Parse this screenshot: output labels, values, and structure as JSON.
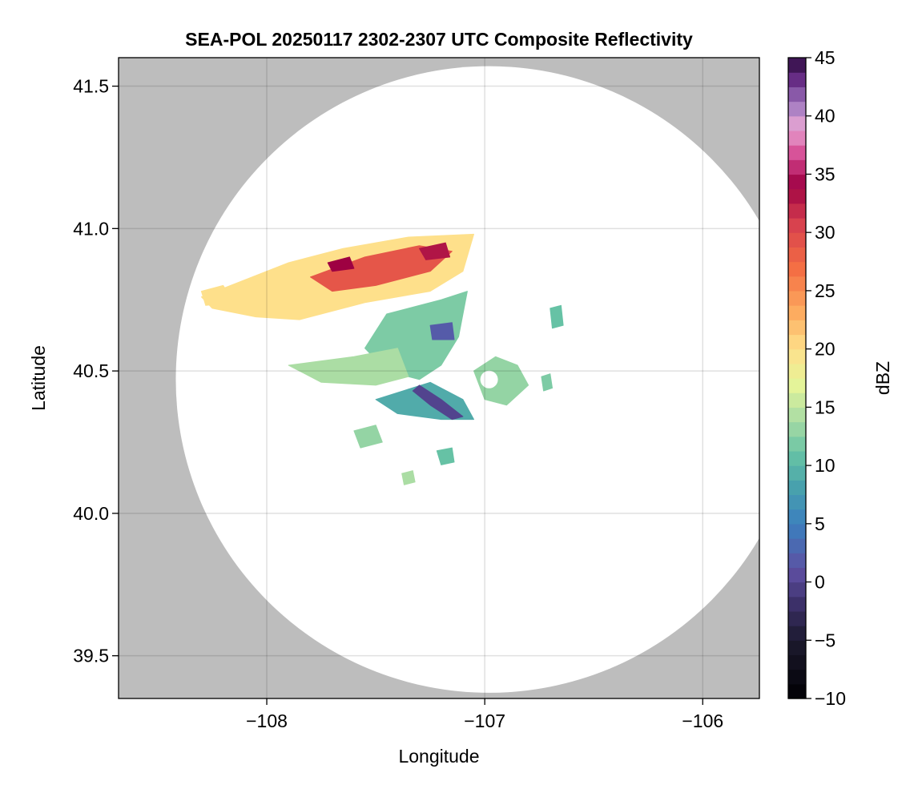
{
  "chart_data": {
    "type": "heatmap",
    "title": "SEA-POL 20250117 2302-2307 UTC Composite Reflectivity",
    "xlabel": "Longitude",
    "ylabel": "Latitude",
    "xlim": [
      -108.68,
      -105.74
    ],
    "ylim": [
      39.35,
      41.6
    ],
    "xticks": [
      {
        "value": -108,
        "label": "−108"
      },
      {
        "value": -107,
        "label": "−107"
      },
      {
        "value": -106,
        "label": "−106"
      }
    ],
    "yticks": [
      {
        "value": 39.5,
        "label": "39.5"
      },
      {
        "value": 40.0,
        "label": "40.0"
      },
      {
        "value": 40.5,
        "label": "40.5"
      },
      {
        "value": 41.0,
        "label": "41.0"
      },
      {
        "value": 41.5,
        "label": "41.5"
      }
    ],
    "grid": true,
    "radar": {
      "center_lon": -106.98,
      "center_lat": 40.47,
      "max_range_deg_lat": 1.1
    },
    "colorbar": {
      "label": "dBZ",
      "min": -10,
      "max": 45,
      "step": 1.25,
      "ticks": [
        -10,
        -5,
        0,
        5,
        10,
        15,
        20,
        25,
        30,
        35,
        40,
        45
      ],
      "tick_labels": [
        "−10",
        "−5",
        "0",
        "5",
        "10",
        "15",
        "20",
        "25",
        "30",
        "35",
        "40",
        "45"
      ],
      "stops": [
        {
          "v": -10,
          "c": "#000004"
        },
        {
          "v": -5,
          "c": "#1c1a2e"
        },
        {
          "v": -2,
          "c": "#3b2f66"
        },
        {
          "v": 1,
          "c": "#5e4fa2"
        },
        {
          "v": 5,
          "c": "#3b7fbf"
        },
        {
          "v": 8,
          "c": "#47a0ad"
        },
        {
          "v": 11,
          "c": "#66c2a5"
        },
        {
          "v": 14,
          "c": "#abdda4"
        },
        {
          "v": 17,
          "c": "#e6f598"
        },
        {
          "v": 20,
          "c": "#fee08b"
        },
        {
          "v": 23,
          "c": "#fdae61"
        },
        {
          "v": 27,
          "c": "#f46d43"
        },
        {
          "v": 31,
          "c": "#d53e4f"
        },
        {
          "v": 34,
          "c": "#9e0142"
        },
        {
          "v": 36.5,
          "c": "#d4448f"
        },
        {
          "v": 39,
          "c": "#e8a6d4"
        },
        {
          "v": 41,
          "c": "#a07ac0"
        },
        {
          "v": 43,
          "c": "#6b2f8a"
        },
        {
          "v": 45,
          "c": "#2d0a3f"
        }
      ]
    },
    "echo_regions": [
      {
        "name": "north-anvil",
        "dbz": 20,
        "points": [
          [
            -108.3,
            40.76
          ],
          [
            -108.1,
            40.82
          ],
          [
            -107.9,
            40.88
          ],
          [
            -107.65,
            40.93
          ],
          [
            -107.35,
            40.97
          ],
          [
            -107.05,
            40.98
          ],
          [
            -107.1,
            40.85
          ],
          [
            -107.25,
            40.78
          ],
          [
            -107.55,
            40.74
          ],
          [
            -107.85,
            40.68
          ],
          [
            -108.05,
            40.69
          ],
          [
            -108.25,
            40.72
          ]
        ]
      },
      {
        "name": "north-core",
        "dbz": 29,
        "points": [
          [
            -107.8,
            40.83
          ],
          [
            -107.55,
            40.9
          ],
          [
            -107.3,
            40.94
          ],
          [
            -107.15,
            40.92
          ],
          [
            -107.25,
            40.85
          ],
          [
            -107.5,
            40.8
          ],
          [
            -107.7,
            40.78
          ]
        ]
      },
      {
        "name": "north-peak-west",
        "dbz": 34,
        "points": [
          [
            -107.72,
            40.88
          ],
          [
            -107.62,
            40.9
          ],
          [
            -107.6,
            40.86
          ],
          [
            -107.7,
            40.85
          ]
        ]
      },
      {
        "name": "north-peak-east",
        "dbz": 33,
        "points": [
          [
            -107.3,
            40.93
          ],
          [
            -107.18,
            40.95
          ],
          [
            -107.16,
            40.9
          ],
          [
            -107.27,
            40.89
          ]
        ]
      },
      {
        "name": "central-band",
        "dbz": 12,
        "points": [
          [
            -107.45,
            40.7
          ],
          [
            -107.2,
            40.75
          ],
          [
            -107.08,
            40.78
          ],
          [
            -107.12,
            40.62
          ],
          [
            -107.2,
            40.52
          ],
          [
            -107.3,
            40.47
          ],
          [
            -107.45,
            40.5
          ],
          [
            -107.55,
            40.58
          ]
        ]
      },
      {
        "name": "central-core",
        "dbz": 2,
        "points": [
          [
            -107.25,
            40.66
          ],
          [
            -107.15,
            40.67
          ],
          [
            -107.14,
            40.61
          ],
          [
            -107.24,
            40.61
          ]
        ]
      },
      {
        "name": "west-arm",
        "dbz": 14,
        "points": [
          [
            -107.9,
            40.52
          ],
          [
            -107.6,
            40.55
          ],
          [
            -107.4,
            40.58
          ],
          [
            -107.35,
            40.48
          ],
          [
            -107.5,
            40.45
          ],
          [
            -107.75,
            40.46
          ]
        ]
      },
      {
        "name": "south-arm",
        "dbz": 9,
        "points": [
          [
            -107.5,
            40.4
          ],
          [
            -107.25,
            40.46
          ],
          [
            -107.1,
            40.4
          ],
          [
            -107.05,
            40.33
          ],
          [
            -107.2,
            40.33
          ],
          [
            -107.4,
            40.35
          ]
        ]
      },
      {
        "name": "southwest-line",
        "dbz": 0,
        "points": [
          [
            -107.3,
            40.45
          ],
          [
            -107.2,
            40.4
          ],
          [
            -107.1,
            40.34
          ],
          [
            -107.15,
            40.33
          ],
          [
            -107.25,
            40.38
          ],
          [
            -107.33,
            40.43
          ]
        ]
      },
      {
        "name": "east-cluster",
        "dbz": 13,
        "points": [
          [
            -107.05,
            40.5
          ],
          [
            -106.95,
            40.55
          ],
          [
            -106.85,
            40.52
          ],
          [
            -106.8,
            40.45
          ],
          [
            -106.9,
            40.38
          ],
          [
            -107.0,
            40.4
          ]
        ]
      },
      {
        "name": "east-small-1",
        "dbz": 12,
        "points": [
          [
            -106.74,
            40.48
          ],
          [
            -106.7,
            40.49
          ],
          [
            -106.69,
            40.44
          ],
          [
            -106.73,
            40.43
          ]
        ]
      },
      {
        "name": "east-small-2",
        "dbz": 11,
        "points": [
          [
            -106.7,
            40.72
          ],
          [
            -106.65,
            40.73
          ],
          [
            -106.64,
            40.66
          ],
          [
            -106.69,
            40.65
          ]
        ]
      },
      {
        "name": "south-cell-1",
        "dbz": 13,
        "points": [
          [
            -107.6,
            40.29
          ],
          [
            -107.5,
            40.31
          ],
          [
            -107.47,
            40.25
          ],
          [
            -107.57,
            40.23
          ]
        ]
      },
      {
        "name": "south-cell-2",
        "dbz": 11,
        "points": [
          [
            -107.22,
            40.22
          ],
          [
            -107.15,
            40.23
          ],
          [
            -107.14,
            40.18
          ],
          [
            -107.2,
            40.17
          ]
        ]
      },
      {
        "name": "south-cell-3",
        "dbz": 14,
        "points": [
          [
            -107.38,
            40.14
          ],
          [
            -107.33,
            40.15
          ],
          [
            -107.32,
            40.11
          ],
          [
            -107.37,
            40.1
          ]
        ]
      },
      {
        "name": "west-fringe",
        "dbz": 20,
        "points": [
          [
            -108.3,
            40.78
          ],
          [
            -108.2,
            40.8
          ],
          [
            -108.15,
            40.74
          ],
          [
            -108.28,
            40.73
          ]
        ]
      }
    ]
  }
}
